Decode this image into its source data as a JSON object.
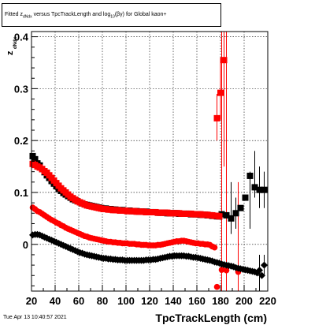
{
  "title_parts": {
    "pre": "Fitted  z",
    "sub1": "dNdx",
    "mid": " versus TpcTrackLength and log",
    "sub2": "10",
    "post": "(βγ) for Global kaon+"
  },
  "footer_date": "Tue Apr 13 10:40:57 2021",
  "colors": {
    "black_series": "#000000",
    "red_series": "#ff0000"
  },
  "chart_data": {
    "type": "scatter",
    "title": "Fitted z_dNdx versus TpcTrackLength and log10(βγ) for Global kaon+",
    "xlabel": "TpcTrackLength (cm)",
    "ylabel_main": "z",
    "ylabel_sub": "dNdx",
    "xlim": [
      20,
      220
    ],
    "ylim": [
      -0.09,
      0.41
    ],
    "grid": true,
    "x_ticks": [
      20,
      40,
      60,
      80,
      100,
      120,
      140,
      160,
      180,
      200,
      220
    ],
    "y_ticks": [
      0,
      0.1,
      0.2,
      0.3,
      0.4
    ],
    "y_tick_labels": [
      "0",
      "0.1",
      "0.2",
      "0.3",
      "0.4"
    ],
    "series": [
      {
        "color": "black",
        "marker": "square",
        "x": [
          21,
          23,
          25,
          27,
          29,
          31,
          33,
          35,
          37,
          39,
          41,
          43,
          45,
          47,
          49,
          51,
          53,
          55,
          57,
          59,
          61,
          63,
          65,
          67,
          69,
          71,
          73,
          75,
          77,
          79,
          81,
          83,
          85,
          87,
          89,
          91,
          93,
          95,
          97,
          99,
          101,
          103,
          105,
          107,
          109,
          111,
          113,
          115,
          117,
          119,
          121,
          123,
          125,
          127,
          129,
          131,
          133,
          135,
          137,
          139,
          141,
          143,
          145,
          147,
          149,
          151,
          153,
          155,
          157,
          159,
          161,
          163,
          165,
          167,
          169,
          171,
          173,
          175,
          177,
          179,
          181,
          185,
          189,
          193,
          197,
          201,
          205,
          209,
          213,
          217
        ],
        "y": [
          0.17,
          0.164,
          0.156,
          0.152,
          0.145,
          0.139,
          0.133,
          0.128,
          0.122,
          0.117,
          0.112,
          0.107,
          0.103,
          0.099,
          0.096,
          0.093,
          0.09,
          0.087,
          0.085,
          0.083,
          0.081,
          0.079,
          0.077,
          0.076,
          0.075,
          0.074,
          0.073,
          0.072,
          0.071,
          0.07,
          0.069,
          0.069,
          0.068,
          0.068,
          0.067,
          0.067,
          0.066,
          0.066,
          0.066,
          0.065,
          0.065,
          0.065,
          0.064,
          0.064,
          0.064,
          0.063,
          0.063,
          0.063,
          0.063,
          0.062,
          0.062,
          0.062,
          0.062,
          0.061,
          0.061,
          0.061,
          0.061,
          0.06,
          0.06,
          0.06,
          0.06,
          0.06,
          0.059,
          0.059,
          0.059,
          0.059,
          0.059,
          0.058,
          0.058,
          0.058,
          0.058,
          0.057,
          0.057,
          0.057,
          0.056,
          0.056,
          0.055,
          0.055,
          0.054,
          0.054,
          0.058,
          0.056,
          0.05,
          0.06,
          0.07,
          0.09,
          0.132,
          0.11,
          0.105,
          0.105
        ],
        "error_bars": [
          [
            189,
            0.05,
            0.02,
            0.12
          ],
          [
            193,
            0.06,
            0.03,
            0.09
          ],
          [
            205,
            0.09,
            0.03,
            0.14
          ],
          [
            209,
            0.132,
            0.09,
            0.18
          ],
          [
            213,
            0.11,
            0.07,
            0.15
          ],
          [
            217,
            0.105,
            0.07,
            0.14
          ]
        ]
      },
      {
        "color": "red",
        "marker": "square",
        "x": [
          21,
          23,
          25,
          27,
          29,
          31,
          33,
          35,
          37,
          39,
          41,
          43,
          45,
          47,
          49,
          51,
          53,
          55,
          57,
          59,
          61,
          63,
          65,
          67,
          69,
          71,
          73,
          75,
          77,
          79,
          81,
          83,
          85,
          87,
          89,
          91,
          93,
          95,
          97,
          99,
          101,
          103,
          105,
          107,
          109,
          111,
          113,
          115,
          117,
          119,
          121,
          123,
          125,
          127,
          129,
          131,
          133,
          135,
          137,
          139,
          141,
          143,
          145,
          147,
          149,
          151,
          153,
          155,
          157,
          159,
          161,
          163,
          165,
          167,
          169,
          171,
          173,
          175,
          177,
          179
        ],
        "y": [
          0.155,
          0.153,
          0.15,
          0.148,
          0.145,
          0.141,
          0.138,
          0.133,
          0.128,
          0.123,
          0.118,
          0.113,
          0.108,
          0.104,
          0.1,
          0.096,
          0.092,
          0.089,
          0.086,
          0.083,
          0.081,
          0.079,
          0.077,
          0.075,
          0.074,
          0.073,
          0.072,
          0.071,
          0.07,
          0.069,
          0.068,
          0.068,
          0.067,
          0.067,
          0.066,
          0.066,
          0.066,
          0.065,
          0.065,
          0.065,
          0.064,
          0.064,
          0.064,
          0.064,
          0.063,
          0.063,
          0.063,
          0.063,
          0.062,
          0.062,
          0.062,
          0.062,
          0.062,
          0.061,
          0.061,
          0.061,
          0.061,
          0.061,
          0.06,
          0.06,
          0.06,
          0.06,
          0.06,
          0.059,
          0.059,
          0.059,
          0.059,
          0.059,
          0.058,
          0.058,
          0.058,
          0.058,
          0.057,
          0.057,
          0.057,
          0.056,
          0.056,
          0.055,
          0.055,
          0.054
        ]
      },
      {
        "color": "red",
        "marker": "square",
        "x": [
          177,
          180,
          183
        ],
        "y": [
          0.243,
          0.292,
          0.355
        ],
        "error_bars": [
          [
            177,
            0.243,
            0.2,
            0.29
          ],
          [
            180,
            0.292,
            0.24,
            0.36
          ],
          [
            183,
            0.355,
            0.15,
            0.41
          ]
        ]
      },
      {
        "color": "red",
        "marker": "circle",
        "x": [
          21,
          23,
          25,
          27,
          29,
          31,
          33,
          35,
          37,
          39,
          41,
          43,
          45,
          47,
          49,
          51,
          53,
          55,
          57,
          59,
          61,
          63,
          65,
          67,
          69,
          71,
          73,
          75,
          77,
          79,
          81,
          83,
          85,
          87,
          89,
          91,
          93,
          95,
          97,
          99,
          101,
          103,
          105,
          107,
          109,
          111,
          113,
          115,
          117,
          119,
          121,
          123,
          125,
          127,
          129,
          131,
          133,
          135,
          137,
          139,
          141,
          143,
          145,
          147,
          149,
          151,
          153,
          155,
          157,
          159,
          161,
          163,
          165,
          167,
          169,
          171,
          173,
          175
        ],
        "y": [
          0.071,
          0.068,
          0.064,
          0.062,
          0.059,
          0.056,
          0.053,
          0.05,
          0.047,
          0.045,
          0.042,
          0.04,
          0.037,
          0.035,
          0.032,
          0.03,
          0.028,
          0.026,
          0.024,
          0.022,
          0.02,
          0.018,
          0.016,
          0.015,
          0.013,
          0.012,
          0.011,
          0.01,
          0.009,
          0.008,
          0.007,
          0.006,
          0.005,
          0.005,
          0.004,
          0.004,
          0.003,
          0.003,
          0.002,
          0.002,
          0.002,
          0.001,
          0.001,
          0.001,
          0.0,
          0.0,
          -0.001,
          -0.001,
          -0.001,
          -0.002,
          -0.002,
          -0.002,
          -0.002,
          -0.001,
          -0.001,
          0.0,
          0.001,
          0.002,
          0.003,
          0.004,
          0.005,
          0.006,
          0.006,
          0.007,
          0.007,
          0.006,
          0.005,
          0.004,
          0.003,
          0.002,
          0.002,
          0.001,
          0.001,
          0.0,
          0.0,
          -0.001,
          -0.004,
          -0.006
        ]
      },
      {
        "color": "red",
        "marker": "circle",
        "x": [
          177,
          181,
          185,
          195
        ],
        "y": [
          -0.082,
          -0.049,
          -0.05,
          -0.053
        ],
        "error_bars": [
          [
            181,
            -0.049,
            -0.09,
            0.41
          ],
          [
            185,
            -0.05,
            -0.09,
            0.41
          ],
          [
            195,
            -0.053,
            -0.09,
            0.12
          ]
        ]
      },
      {
        "color": "black",
        "marker": "diamond",
        "x": [
          21,
          23,
          25,
          27,
          29,
          31,
          33,
          35,
          37,
          39,
          41,
          43,
          45,
          47,
          49,
          51,
          53,
          55,
          57,
          59,
          61,
          63,
          65,
          67,
          69,
          71,
          73,
          75,
          77,
          79,
          81,
          83,
          85,
          87,
          89,
          91,
          93,
          95,
          97,
          99,
          101,
          103,
          105,
          107,
          109,
          111,
          113,
          115,
          117,
          119,
          121,
          123,
          125,
          127,
          129,
          131,
          133,
          135,
          137,
          139,
          141,
          143,
          145,
          147,
          149,
          151,
          153,
          155,
          157,
          159,
          161,
          163,
          165,
          167,
          169,
          171,
          173,
          175,
          177,
          179,
          181,
          183,
          185,
          187,
          189,
          191,
          193,
          195,
          197,
          199,
          201,
          203,
          205,
          207,
          209,
          211,
          213,
          215,
          217
        ],
        "y": [
          0.018,
          0.019,
          0.019,
          0.018,
          0.016,
          0.014,
          0.012,
          0.01,
          0.008,
          0.006,
          0.004,
          0.002,
          0.0,
          -0.002,
          -0.004,
          -0.006,
          -0.008,
          -0.01,
          -0.012,
          -0.014,
          -0.016,
          -0.017,
          -0.019,
          -0.02,
          -0.021,
          -0.022,
          -0.023,
          -0.024,
          -0.025,
          -0.026,
          -0.027,
          -0.027,
          -0.028,
          -0.028,
          -0.029,
          -0.029,
          -0.03,
          -0.03,
          -0.03,
          -0.031,
          -0.031,
          -0.031,
          -0.031,
          -0.031,
          -0.031,
          -0.031,
          -0.031,
          -0.031,
          -0.03,
          -0.03,
          -0.03,
          -0.029,
          -0.029,
          -0.028,
          -0.027,
          -0.026,
          -0.025,
          -0.024,
          -0.023,
          -0.023,
          -0.022,
          -0.022,
          -0.022,
          -0.022,
          -0.022,
          -0.023,
          -0.023,
          -0.024,
          -0.025,
          -0.025,
          -0.026,
          -0.027,
          -0.028,
          -0.029,
          -0.03,
          -0.031,
          -0.032,
          -0.034,
          -0.035,
          -0.036,
          -0.038,
          -0.039,
          -0.04,
          -0.041,
          -0.042,
          -0.043,
          -0.045,
          -0.046,
          -0.047,
          -0.048,
          -0.049,
          -0.05,
          -0.051,
          -0.052,
          -0.053,
          -0.055,
          -0.05,
          -0.06,
          -0.04
        ],
        "error_bars": [
          [
            213,
            -0.05,
            -0.09,
            -0.02
          ],
          [
            217,
            -0.04,
            -0.06,
            -0.02
          ]
        ]
      }
    ]
  }
}
